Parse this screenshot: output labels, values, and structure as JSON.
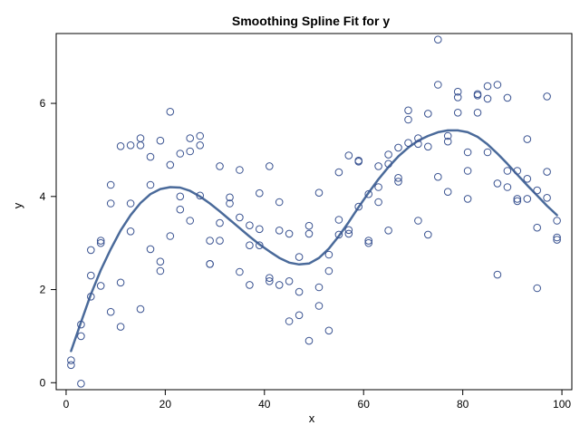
{
  "chart_data": {
    "type": "scatter",
    "title": "Smoothing Spline Fit for y",
    "xlabel": "x",
    "ylabel": "y",
    "xlim": [
      -2,
      102
    ],
    "ylim": [
      -0.15,
      7.5
    ],
    "xticks": [
      0,
      20,
      40,
      60,
      80,
      100
    ],
    "yticks": [
      0,
      2,
      4,
      6
    ],
    "grid": false,
    "legend": "none",
    "colors": {
      "marker": "#3a5391",
      "line": "#4a6a9a",
      "frame": "#000000"
    },
    "series": [
      {
        "type": "scatter",
        "points": [
          [
            1,
            0.48
          ],
          [
            1,
            0.38
          ],
          [
            3,
            1.25
          ],
          [
            3,
            1.0
          ],
          [
            3,
            -0.02
          ],
          [
            5,
            2.85
          ],
          [
            5,
            2.3
          ],
          [
            5,
            1.85
          ],
          [
            7,
            3.05
          ],
          [
            7,
            3.0
          ],
          [
            7,
            2.08
          ],
          [
            9,
            4.25
          ],
          [
            9,
            3.85
          ],
          [
            9,
            1.52
          ],
          [
            11,
            5.08
          ],
          [
            11,
            2.15
          ],
          [
            11,
            1.2
          ],
          [
            13,
            5.1
          ],
          [
            13,
            3.85
          ],
          [
            13,
            3.25
          ],
          [
            15,
            5.25
          ],
          [
            15,
            5.1
          ],
          [
            15,
            1.58
          ],
          [
            17,
            4.85
          ],
          [
            17,
            4.25
          ],
          [
            17,
            2.87
          ],
          [
            19,
            5.2
          ],
          [
            19,
            2.6
          ],
          [
            19,
            2.4
          ],
          [
            21,
            5.82
          ],
          [
            21,
            4.68
          ],
          [
            21,
            3.15
          ],
          [
            23,
            4.92
          ],
          [
            23,
            4.0
          ],
          [
            23,
            3.72
          ],
          [
            25,
            5.25
          ],
          [
            25,
            4.97
          ],
          [
            25,
            3.48
          ],
          [
            27,
            5.3
          ],
          [
            27,
            5.1
          ],
          [
            27,
            4.02
          ],
          [
            29,
            3.05
          ],
          [
            29,
            2.55
          ],
          [
            29,
            2.55
          ],
          [
            31,
            4.65
          ],
          [
            31,
            3.43
          ],
          [
            31,
            3.05
          ],
          [
            33,
            3.98
          ],
          [
            33,
            3.85
          ],
          [
            35,
            4.57
          ],
          [
            35,
            3.55
          ],
          [
            35,
            2.38
          ],
          [
            37,
            3.38
          ],
          [
            37,
            2.95
          ],
          [
            37,
            2.1
          ],
          [
            39,
            4.07
          ],
          [
            39,
            3.3
          ],
          [
            39,
            2.95
          ],
          [
            41,
            4.65
          ],
          [
            41,
            2.25
          ],
          [
            41,
            2.18
          ],
          [
            43,
            3.88
          ],
          [
            43,
            3.27
          ],
          [
            43,
            2.1
          ],
          [
            45,
            3.2
          ],
          [
            45,
            2.18
          ],
          [
            45,
            1.32
          ],
          [
            47,
            2.7
          ],
          [
            47,
            1.95
          ],
          [
            47,
            1.45
          ],
          [
            49,
            3.37
          ],
          [
            49,
            3.2
          ],
          [
            49,
            0.9
          ],
          [
            51,
            4.08
          ],
          [
            51,
            2.05
          ],
          [
            51,
            1.65
          ],
          [
            53,
            2.75
          ],
          [
            53,
            2.4
          ],
          [
            53,
            1.12
          ],
          [
            55,
            4.52
          ],
          [
            55,
            3.5
          ],
          [
            55,
            3.18
          ],
          [
            57,
            4.88
          ],
          [
            57,
            3.28
          ],
          [
            57,
            3.2
          ],
          [
            59,
            4.77
          ],
          [
            59,
            4.75
          ],
          [
            59,
            3.78
          ],
          [
            61,
            4.05
          ],
          [
            61,
            3.05
          ],
          [
            61,
            3.0
          ],
          [
            63,
            4.65
          ],
          [
            63,
            4.2
          ],
          [
            63,
            3.88
          ],
          [
            65,
            4.9
          ],
          [
            65,
            4.7
          ],
          [
            65,
            3.27
          ],
          [
            67,
            5.05
          ],
          [
            67,
            4.4
          ],
          [
            67,
            4.32
          ],
          [
            69,
            5.85
          ],
          [
            69,
            5.65
          ],
          [
            69,
            5.15
          ],
          [
            71,
            5.25
          ],
          [
            71,
            5.13
          ],
          [
            71,
            3.48
          ],
          [
            73,
            5.78
          ],
          [
            73,
            5.07
          ],
          [
            73,
            3.18
          ],
          [
            75,
            7.37
          ],
          [
            75,
            6.4
          ],
          [
            75,
            4.42
          ],
          [
            77,
            5.3
          ],
          [
            77,
            5.18
          ],
          [
            77,
            4.1
          ],
          [
            79,
            6.25
          ],
          [
            79,
            6.13
          ],
          [
            79,
            5.8
          ],
          [
            81,
            4.95
          ],
          [
            81,
            4.55
          ],
          [
            81,
            3.95
          ],
          [
            83,
            6.2
          ],
          [
            83,
            6.17
          ],
          [
            83,
            5.8
          ],
          [
            85,
            6.37
          ],
          [
            85,
            6.1
          ],
          [
            85,
            4.95
          ],
          [
            87,
            6.4
          ],
          [
            87,
            4.28
          ],
          [
            87,
            2.32
          ],
          [
            89,
            6.12
          ],
          [
            89,
            4.55
          ],
          [
            89,
            4.2
          ],
          [
            91,
            4.55
          ],
          [
            91,
            3.95
          ],
          [
            91,
            3.9
          ],
          [
            93,
            5.23
          ],
          [
            93,
            4.38
          ],
          [
            93,
            3.95
          ],
          [
            95,
            4.13
          ],
          [
            95,
            3.33
          ],
          [
            95,
            2.03
          ],
          [
            97,
            6.15
          ],
          [
            97,
            4.53
          ],
          [
            97,
            3.97
          ],
          [
            99,
            3.48
          ],
          [
            99,
            3.12
          ],
          [
            99,
            3.07
          ]
        ]
      },
      {
        "type": "line",
        "points": [
          [
            1,
            0.68
          ],
          [
            3,
            1.3
          ],
          [
            5,
            1.9
          ],
          [
            7,
            2.42
          ],
          [
            9,
            2.87
          ],
          [
            11,
            3.27
          ],
          [
            13,
            3.6
          ],
          [
            15,
            3.86
          ],
          [
            17,
            4.05
          ],
          [
            19,
            4.16
          ],
          [
            21,
            4.2
          ],
          [
            23,
            4.19
          ],
          [
            25,
            4.12
          ],
          [
            27,
            4.0
          ],
          [
            29,
            3.85
          ],
          [
            31,
            3.68
          ],
          [
            33,
            3.5
          ],
          [
            35,
            3.32
          ],
          [
            37,
            3.14
          ],
          [
            39,
            2.97
          ],
          [
            41,
            2.82
          ],
          [
            43,
            2.68
          ],
          [
            45,
            2.58
          ],
          [
            47,
            2.54
          ],
          [
            49,
            2.56
          ],
          [
            51,
            2.68
          ],
          [
            53,
            2.88
          ],
          [
            55,
            3.15
          ],
          [
            57,
            3.45
          ],
          [
            59,
            3.77
          ],
          [
            61,
            4.08
          ],
          [
            63,
            4.37
          ],
          [
            65,
            4.63
          ],
          [
            67,
            4.86
          ],
          [
            69,
            5.05
          ],
          [
            71,
            5.2
          ],
          [
            73,
            5.3
          ],
          [
            75,
            5.38
          ],
          [
            77,
            5.42
          ],
          [
            79,
            5.42
          ],
          [
            81,
            5.38
          ],
          [
            83,
            5.28
          ],
          [
            85,
            5.12
          ],
          [
            87,
            4.92
          ],
          [
            89,
            4.7
          ],
          [
            91,
            4.47
          ],
          [
            93,
            4.24
          ],
          [
            95,
            4.02
          ],
          [
            97,
            3.8
          ],
          [
            99,
            3.6
          ]
        ]
      }
    ]
  }
}
